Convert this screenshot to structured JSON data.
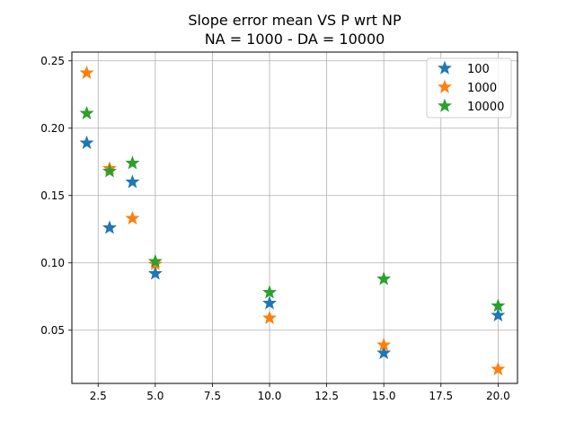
{
  "chart_data": {
    "type": "scatter",
    "title": [
      "Slope error mean VS P wrt NP",
      "NA = 1000 - DA = 10000"
    ],
    "xlabel": "",
    "ylabel": "",
    "xlim": [
      1.35,
      20.85
    ],
    "ylim": [
      0.0105,
      0.2565
    ],
    "xticks": [
      2.5,
      5.0,
      7.5,
      10.0,
      12.5,
      15.0,
      17.5,
      20.0
    ],
    "xtick_labels": [
      "2.5",
      "5.0",
      "7.5",
      "10.0",
      "12.5",
      "15.0",
      "17.5",
      "20.0"
    ],
    "yticks": [
      0.05,
      0.1,
      0.15,
      0.2,
      0.25
    ],
    "ytick_labels": [
      "0.05",
      "0.10",
      "0.15",
      "0.20",
      "0.25"
    ],
    "grid": true,
    "marker": "star",
    "legend_position": "top-right",
    "series": [
      {
        "name": "100",
        "color": "#1f77b4",
        "x": [
          2,
          3,
          4,
          5,
          10,
          15,
          20
        ],
        "y": [
          0.189,
          0.126,
          0.16,
          0.092,
          0.07,
          0.033,
          0.061
        ]
      },
      {
        "name": "1000",
        "color": "#ff7f0e",
        "x": [
          2,
          3,
          4,
          5,
          10,
          15,
          20
        ],
        "y": [
          0.241,
          0.17,
          0.133,
          0.099,
          0.059,
          0.039,
          0.021
        ]
      },
      {
        "name": "10000",
        "color": "#2ca02c",
        "x": [
          2,
          3,
          4,
          5,
          10,
          15,
          20
        ],
        "y": [
          0.211,
          0.168,
          0.174,
          0.101,
          0.078,
          0.088,
          0.068
        ]
      }
    ]
  }
}
